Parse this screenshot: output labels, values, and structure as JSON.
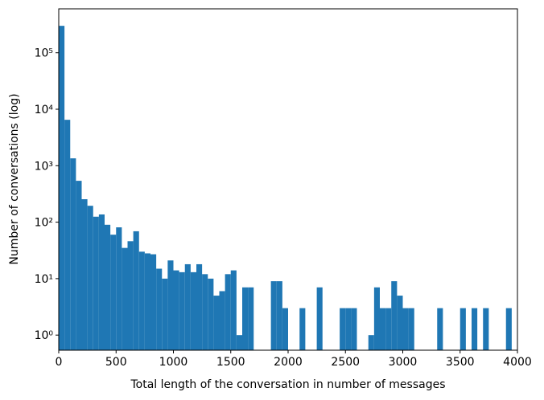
{
  "chart_data": {
    "type": "histogram",
    "xlabel": "Total length of the conversation in number of messages",
    "ylabel": "Number of conversations (log)",
    "color": "#1f77b4",
    "log_y": true,
    "bins": [
      0,
      50,
      100,
      150,
      200,
      250,
      300,
      350,
      400,
      450,
      500,
      550,
      600,
      650,
      700,
      750,
      800,
      850,
      900,
      950,
      1000,
      1050,
      1100,
      1150,
      1200,
      1250,
      1300,
      1350,
      1400,
      1450,
      1500,
      1550,
      1600,
      1650,
      1700,
      1750,
      1800,
      1850,
      1900,
      1950,
      2000,
      2050,
      2100,
      2150,
      2200,
      2250,
      2300,
      2350,
      2400,
      2450,
      2500,
      2550,
      2600,
      2650,
      2700,
      2750,
      2800,
      2850,
      2900,
      2950,
      3000,
      3050,
      3100,
      3150,
      3200,
      3250,
      3300,
      3350,
      3400,
      3450,
      3500,
      3550,
      3600,
      3650,
      3700,
      3750,
      3800,
      3850,
      3900,
      3950,
      4000
    ],
    "values": [
      300000,
      6500,
      1350,
      540,
      255,
      195,
      125,
      137,
      90,
      60,
      81,
      35,
      46,
      69,
      30,
      28,
      27,
      15,
      10,
      21,
      14,
      13,
      18,
      13,
      18,
      12,
      10,
      5,
      6,
      12,
      14,
      1,
      7,
      7,
      0,
      0,
      0,
      9,
      9,
      3,
      0,
      0,
      3,
      0,
      0,
      7,
      0,
      0,
      0,
      3,
      3,
      3,
      0,
      0,
      1,
      7,
      3,
      3,
      9,
      5,
      3,
      3,
      0,
      0,
      0,
      0,
      3,
      0,
      0,
      0,
      3,
      0,
      3,
      0,
      3,
      0,
      0,
      0,
      3,
      0
    ],
    "xlim": [
      0,
      4000
    ],
    "xticks": [
      0,
      500,
      1000,
      1500,
      2000,
      2500,
      3000,
      3500,
      4000
    ],
    "ylim": [
      0.54,
      600000
    ],
    "yticks": [
      {
        "value": 1,
        "label": "10⁰"
      },
      {
        "value": 10,
        "label": "10¹"
      },
      {
        "value": 100,
        "label": "10²"
      },
      {
        "value": 1000,
        "label": "10³"
      },
      {
        "value": 10000,
        "label": "10⁴"
      },
      {
        "value": 100000,
        "label": "10⁵"
      }
    ]
  }
}
